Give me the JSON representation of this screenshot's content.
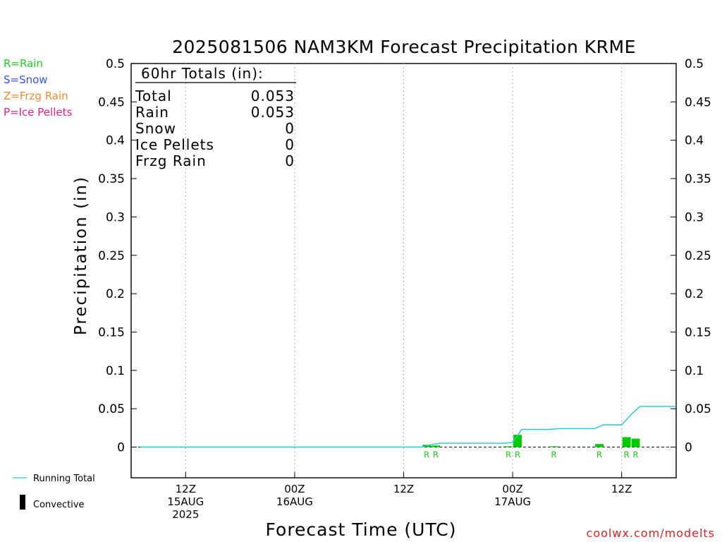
{
  "chart_data": {
    "type": "bar",
    "title": "2025081506 NAM3KM Forecast Precipitation KRME",
    "xlabel": "Forecast Time (UTC)",
    "ylabel": "Precipitation (in)",
    "ylim": [
      -0.04,
      0.5
    ],
    "yticks": [
      0,
      0.05,
      0.1,
      0.15,
      0.2,
      0.25,
      0.3,
      0.35,
      0.4,
      0.45,
      0.5
    ],
    "ytick_labels": [
      "0",
      "0.05",
      "0.1",
      "0.15",
      "0.2",
      "0.25",
      "0.3",
      "0.35",
      "0.4",
      "0.45",
      "0.5"
    ],
    "xlim_hours": [
      0,
      60
    ],
    "x_ticks": [
      {
        "hour": 6,
        "lines": [
          "12Z",
          "15AUG",
          "2025"
        ]
      },
      {
        "hour": 18,
        "lines": [
          "00Z",
          "16AUG"
        ]
      },
      {
        "hour": 30,
        "lines": [
          "12Z"
        ]
      },
      {
        "hour": 42,
        "lines": [
          "00Z",
          "17AUG"
        ]
      },
      {
        "hour": 54,
        "lines": [
          "12Z"
        ]
      }
    ],
    "series": [
      {
        "name": "Running Total",
        "color": "#20c8d0",
        "type": "line",
        "x": [
          1,
          2,
          3,
          4,
          5,
          6,
          7,
          8,
          9,
          10,
          11,
          12,
          13,
          14,
          15,
          16,
          17,
          18,
          19,
          20,
          21,
          22,
          23,
          24,
          25,
          26,
          27,
          28,
          29,
          30,
          31,
          32,
          33,
          34,
          35,
          36,
          37,
          38,
          39,
          40,
          41,
          42,
          43,
          44,
          45,
          46,
          47,
          48,
          49,
          50,
          51,
          52,
          53,
          54,
          55,
          56,
          57,
          58,
          59,
          60
        ],
        "values": [
          0,
          0,
          0,
          0,
          0,
          0,
          0,
          0,
          0,
          0,
          0,
          0,
          0,
          0,
          0,
          0,
          0,
          0,
          0,
          0,
          0,
          0,
          0,
          0,
          0,
          0,
          0,
          0,
          0,
          0,
          0,
          0,
          0.003,
          0.005,
          0.005,
          0.005,
          0.005,
          0.005,
          0.005,
          0.005,
          0.005,
          0.006,
          0.023,
          0.023,
          0.023,
          0.023,
          0.024,
          0.024,
          0.024,
          0.024,
          0.024,
          0.029,
          0.029,
          0.029,
          0.042,
          0.053,
          0.053,
          0.053,
          0.053,
          0.053
        ]
      },
      {
        "name": "Rain",
        "color": "#00cc00",
        "type": "bar",
        "x": [
          33,
          34,
          42,
          43,
          47,
          52,
          55,
          56
        ],
        "values": [
          0.003,
          0.002,
          0.001,
          0.016,
          0.001,
          0.004,
          0.013,
          0.011
        ]
      }
    ],
    "precip_markers": [
      {
        "hour": 33,
        "label": "R"
      },
      {
        "hour": 34,
        "label": "R"
      },
      {
        "hour": 42,
        "label": "R"
      },
      {
        "hour": 43,
        "label": "R"
      },
      {
        "hour": 47,
        "label": "R"
      },
      {
        "hour": 52,
        "label": "R"
      },
      {
        "hour": 55,
        "label": "R"
      },
      {
        "hour": 56,
        "label": "R"
      }
    ],
    "grid_vertical": true,
    "legend_position": "left"
  },
  "type_legend": [
    {
      "label": "R=Rain",
      "color": "#22cc22"
    },
    {
      "label": "S=Snow",
      "color": "#3355ee"
    },
    {
      "label": "Z=Frzg Rain",
      "color": "#f08a30"
    },
    {
      "label": "P=Ice Pellets",
      "color": "#e0208a"
    }
  ],
  "totals": {
    "heading": "60hr Totals (in):",
    "rows": [
      {
        "label": "Total",
        "value": "0.053"
      },
      {
        "label": "Rain",
        "value": "0.053"
      },
      {
        "label": "Snow",
        "value": "0"
      },
      {
        "label": "Ice Pellets",
        "value": "0"
      },
      {
        "label": "Frzg Rain",
        "value": "0"
      }
    ]
  },
  "bottom_legend": {
    "running_total": "Running Total",
    "convective": "Convective",
    "running_total_color": "#20c8d0"
  },
  "credit": {
    "text": "coolwx.com/modelts",
    "color": "#e02020"
  }
}
